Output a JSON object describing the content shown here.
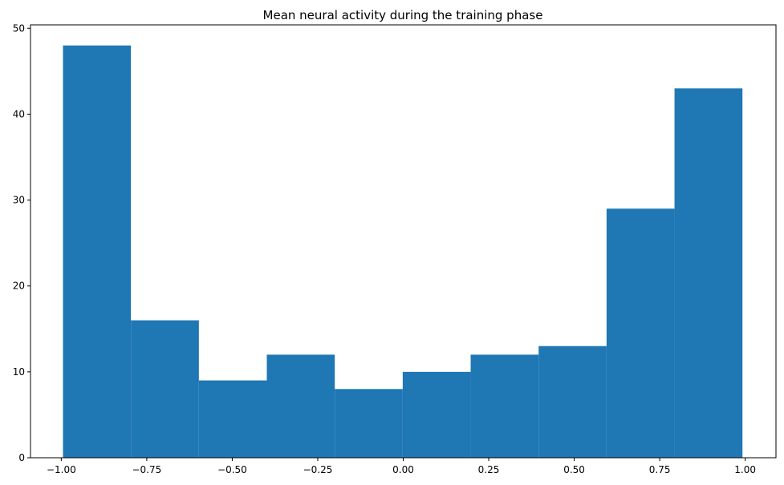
{
  "chart_data": {
    "type": "bar",
    "subtype": "histogram",
    "title": "Mean neural activity during the training phase",
    "xlabel": "",
    "ylabel": "",
    "xlim": [
      -1.09,
      1.09
    ],
    "ylim": [
      0,
      50.4
    ],
    "bin_edges": [
      -0.995,
      -0.7963,
      -0.5976,
      -0.3989,
      -0.2002,
      -0.0015,
      0.1972,
      0.3959,
      0.5946,
      0.7933,
      0.992
    ],
    "values": [
      48,
      16,
      9,
      12,
      8,
      10,
      12,
      13,
      29,
      43
    ],
    "x_ticks": [
      -1.0,
      -0.75,
      -0.5,
      -0.25,
      0.0,
      0.25,
      0.5,
      0.75,
      1.0
    ],
    "x_tick_labels": [
      "−1.00",
      "−0.75",
      "−0.50",
      "−0.25",
      "0.00",
      "0.25",
      "0.50",
      "0.75",
      "1.00"
    ],
    "y_ticks": [
      0,
      10,
      20,
      30,
      40,
      50
    ],
    "y_tick_labels": [
      "0",
      "10",
      "20",
      "30",
      "40",
      "50"
    ],
    "grid": false,
    "legend": "none",
    "bar_color": "#1f77b4"
  }
}
